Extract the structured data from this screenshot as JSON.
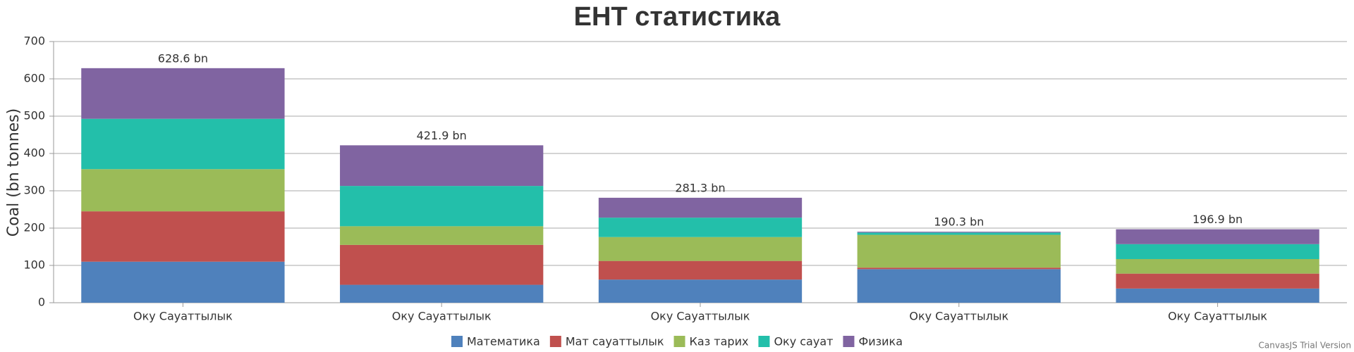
{
  "chart_data": {
    "type": "stacked_bar",
    "title": "ЕНТ статистика",
    "y_label": "Coal (bn tonnes)",
    "categories": [
      "Оку Сауаттылык",
      "Оку Сауаттылык",
      "Оку Сауаттылык",
      "Оку Сауаттылык",
      "Оку Сауаттылык"
    ],
    "series": [
      {
        "name": "Математика",
        "color": "#4F81BC",
        "values": [
          110,
          48,
          62,
          90,
          38
        ]
      },
      {
        "name": "Мат сауаттылык",
        "color": "#C0504E",
        "values": [
          135,
          107,
          50,
          4,
          40
        ]
      },
      {
        "name": "Каз тарих",
        "color": "#9BBB58",
        "values": [
          113,
          50,
          64,
          88,
          39
        ]
      },
      {
        "name": "Оку сауат",
        "color": "#23BFAA",
        "values": [
          135,
          108,
          52,
          6,
          40
        ]
      },
      {
        "name": "Физика",
        "color": "#8064A1",
        "values": [
          135.6,
          108.9,
          53.3,
          2.3,
          39.9
        ]
      }
    ],
    "totals": {
      "values": [
        628.6,
        421.9,
        281.3,
        190.3,
        196.9
      ],
      "value_labels": [
        "628.6 bn",
        "421.9 bn",
        "281.3 bn",
        "190.3 bn",
        "196.9 bn"
      ]
    },
    "ylim": [
      0,
      700
    ],
    "yticks": [
      0,
      100,
      200,
      300,
      400,
      500,
      600,
      700
    ],
    "grid": true,
    "watermark": "CanvasJS Trial Version"
  }
}
